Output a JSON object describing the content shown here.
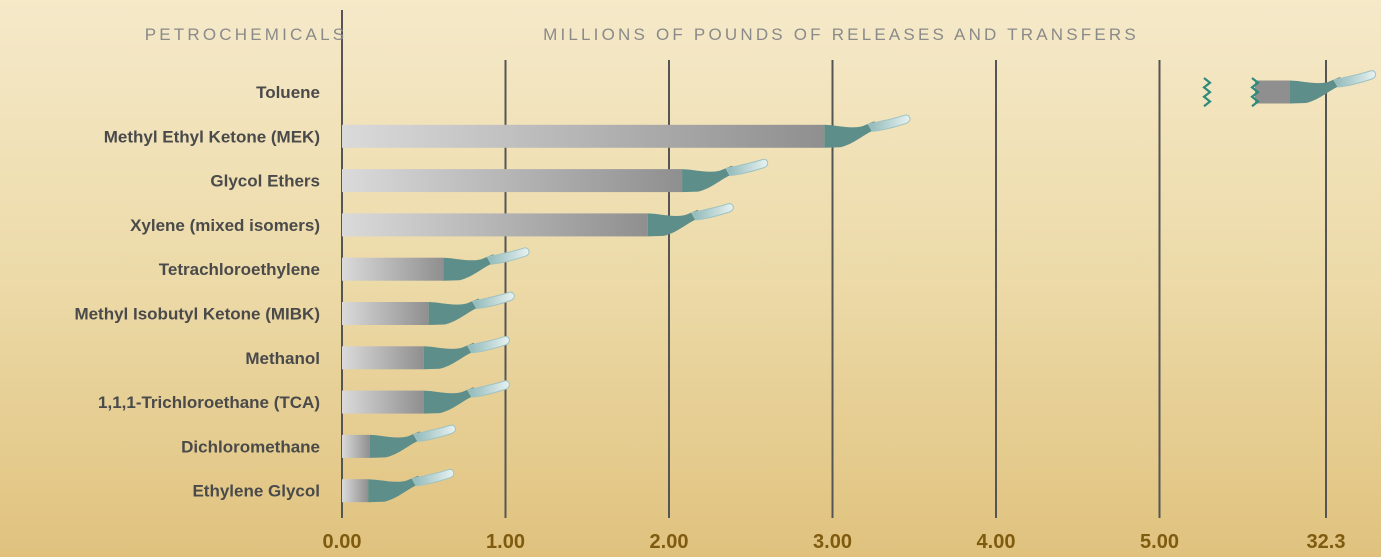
{
  "chart_data": {
    "type": "bar",
    "title": "",
    "header_left": "PETROCHEMICALS",
    "header_right": "MILLIONS OF POUNDS OF RELEASES AND TRANSFERS",
    "categories": [
      "Toluene",
      "Methyl Ethyl Ketone (MEK)",
      "Glycol Ethers",
      "Xylene (mixed isomers)",
      "Tetrachloroethylene",
      "Methyl Isobutyl Ketone (MIBK)",
      "Methanol",
      "1,1,1-Trichloroethane (TCA)",
      "Dichloromethane",
      "Ethylene Glycol"
    ],
    "values": [
      32.1,
      2.95,
      2.08,
      1.87,
      0.62,
      0.53,
      0.5,
      0.5,
      0.17,
      0.16
    ],
    "x_ticks": [
      "0.00",
      "1.00",
      "2.00",
      "3.00",
      "4.00",
      "5.00",
      "32.3"
    ],
    "x_tick_values": [
      0,
      1,
      2,
      3,
      4,
      5,
      32.3
    ],
    "axis_break": {
      "after": 5.0,
      "resumes_at": 31.3
    },
    "xlim": [
      0,
      32.3
    ],
    "xlabel": "",
    "ylabel": "",
    "grid": true,
    "colors": {
      "bar_light": "#dadada",
      "bar_dark": "#8f8f8f",
      "tube": "#5e8e8a",
      "tube_tip": "#bcd6d8",
      "grid": "#555555",
      "tick_text": "#7f5b10",
      "category_text": "#4a4a4a",
      "header_text": "#8a8a8a",
      "break_mark": "#2f8a7c"
    }
  }
}
